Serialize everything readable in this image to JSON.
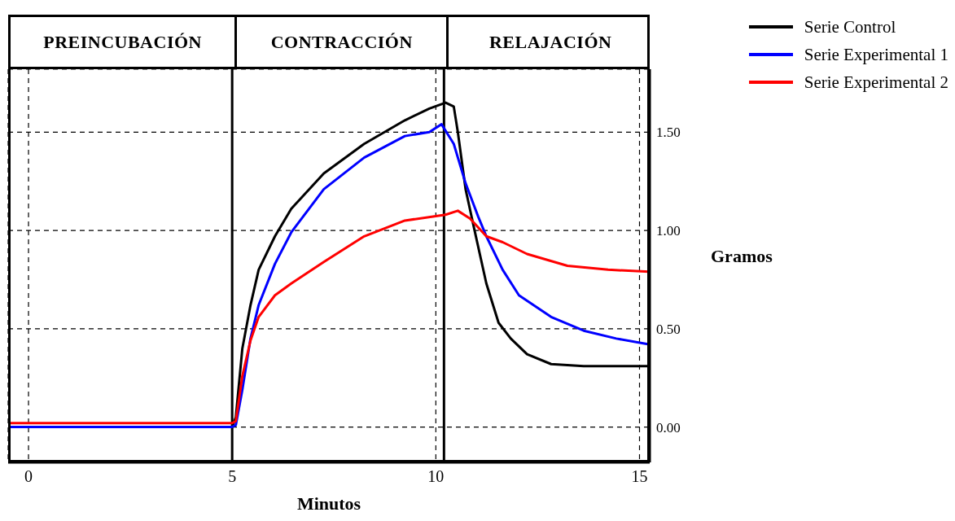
{
  "chart_data": {
    "type": "line",
    "xlabel": "Minutos",
    "ylabel": "Gramos",
    "xlim": [
      -0.5,
      15.25
    ],
    "xticks": [
      0,
      5,
      10,
      15
    ],
    "ylim": [
      -0.18,
      1.82
    ],
    "yticks": [
      {
        "value": 0,
        "label": "0.00"
      },
      {
        "value": 0.5,
        "label": "0.50"
      },
      {
        "value": 1,
        "label": "1.00"
      },
      {
        "value": 1.5,
        "label": "1.50"
      }
    ],
    "grid": true,
    "legend": "top right",
    "marker": "none",
    "line_style": "solid",
    "ref_lines": [
      {
        "axis": "x",
        "value": 5,
        "color": "#000000",
        "line_style": "solid"
      },
      {
        "axis": "x",
        "value": 10.2,
        "color": "#000000",
        "line_style": "solid"
      }
    ],
    "annotations": [
      "PREINCUBACIÓN",
      "CONTRACCIÓN",
      "RELAJACIÓN"
    ],
    "series": [
      {
        "name": "Serie Control",
        "color": "#000000",
        "x": [
          -0.5,
          2,
          5,
          5.09,
          5.25,
          5.45,
          5.65,
          6.05,
          6.45,
          7.25,
          8.24,
          9.24,
          9.84,
          10.24,
          10.44,
          10.54,
          10.73,
          10.94,
          11.24,
          11.54,
          11.84,
          12.24,
          12.83,
          13.63,
          15.23
        ],
        "values": [
          0,
          0,
          0,
          0.05,
          0.4,
          0.62,
          0.8,
          0.97,
          1.11,
          1.29,
          1.44,
          1.56,
          1.62,
          1.65,
          1.63,
          1.5,
          1.21,
          1.01,
          0.73,
          0.53,
          0.45,
          0.37,
          0.32,
          0.31,
          0.31
        ]
      },
      {
        "name": "Serie Experimental 1",
        "color": "#0000ff",
        "x": [
          -0.5,
          2,
          5,
          5.09,
          5.25,
          5.45,
          5.65,
          6.05,
          6.45,
          7.25,
          8.24,
          9.24,
          9.84,
          10.14,
          10.44,
          10.73,
          11.04,
          11.24,
          11.64,
          12.04,
          12.83,
          13.63,
          14.43,
          15.23
        ],
        "values": [
          0,
          0,
          0,
          0.01,
          0.19,
          0.45,
          0.62,
          0.83,
          0.99,
          1.21,
          1.37,
          1.48,
          1.5,
          1.54,
          1.44,
          1.24,
          1.07,
          0.97,
          0.8,
          0.67,
          0.56,
          0.49,
          0.45,
          0.42
        ]
      },
      {
        "name": "Serie Experimental 2",
        "color": "#ff0000",
        "x": [
          -0.5,
          2,
          5,
          5.09,
          5.25,
          5.45,
          5.65,
          6.05,
          6.45,
          7.25,
          8.24,
          9.24,
          10.24,
          10.54,
          10.84,
          11.24,
          11.64,
          12.24,
          13.23,
          14.23,
          15.23
        ],
        "values": [
          0.02,
          0.02,
          0.02,
          0.03,
          0.26,
          0.44,
          0.56,
          0.67,
          0.73,
          0.84,
          0.97,
          1.05,
          1.08,
          1.1,
          1.06,
          0.97,
          0.94,
          0.88,
          0.82,
          0.8,
          0.79
        ]
      }
    ]
  }
}
